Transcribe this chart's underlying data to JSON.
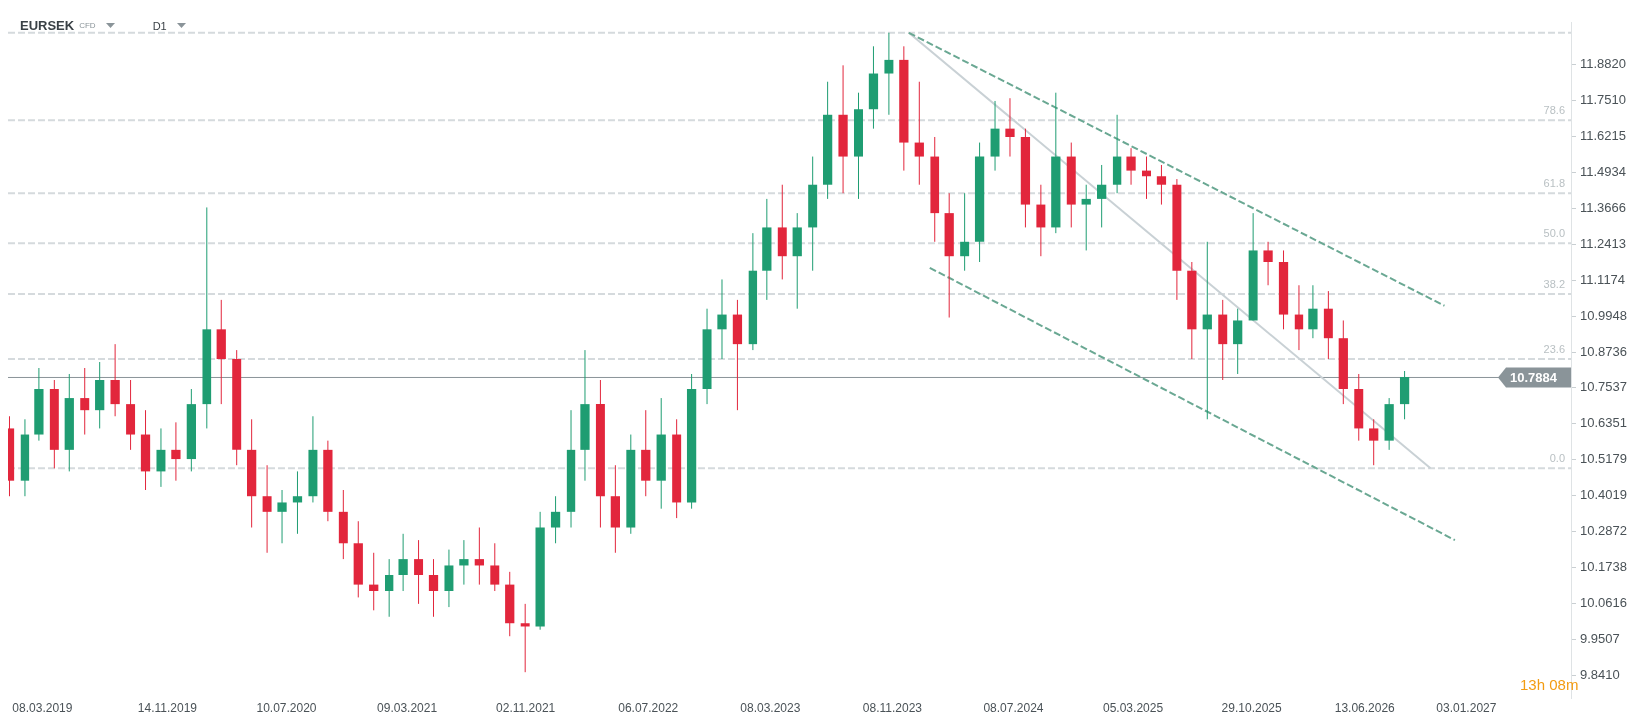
{
  "chart_data": {
    "type": "candlestick",
    "title": "EURSEK",
    "subtitle": "CFD",
    "annotations": [
      "D1",
      "13h 08m",
      {
        "text": "78.6",
        "y": 11.68
      },
      {
        "text": "61.8",
        "y": 11.42
      },
      {
        "text": "50.0",
        "y": 11.245
      },
      {
        "text": "38.2",
        "y": 11.07
      },
      {
        "text": "23.6",
        "y": 10.85
      },
      {
        "text": "0.0",
        "y": 10.49
      }
    ],
    "colors": [
      "#e2263c",
      "#1f9d72",
      "#1f9d72",
      "#e2263c",
      "#1f9d72",
      "#e2263c",
      "#1f9d72",
      "#e2263c",
      "#e2263c",
      "#e2263c",
      "#1f9d72",
      "#e2263c",
      "#1f9d72",
      "#1f9d72",
      "#e2263c",
      "#e2263c",
      "#e2263c",
      "#e2263c",
      "#1f9d72",
      "#1f9d72",
      "#1f9d72",
      "#e2263c",
      "#e2263c",
      "#e2263c",
      "#e2263c",
      "#1f9d72",
      "#1f9d72",
      "#e2263c",
      "#e2263c",
      "#1f9d72",
      "#1f9d72",
      "#e2263c",
      "#e2263c",
      "#e2263c",
      "#e2263c",
      "#1f9d72",
      "#1f9d72",
      "#1f9d72",
      "#1f9d72",
      "#e2263c",
      "#e2263c",
      "#1f9d72",
      "#e2263c",
      "#1f9d72",
      "#e2263c",
      "#1f9d72",
      "#1f9d72",
      "#1f9d72",
      "#e2263c",
      "#1f9d72",
      "#1f9d72",
      "#e2263c",
      "#1f9d72",
      "#1f9d72",
      "#1f9d72",
      "#e2263c",
      "#1f9d72",
      "#1f9d72",
      "#1f9d72",
      "#e2263c",
      "#e2263c",
      "#e2263c",
      "#e2263c",
      "#1f9d72",
      "#1f9d72",
      "#1f9d72",
      "#e2263c",
      "#e2263c",
      "#e2263c",
      "#1f9d72",
      "#e2263c",
      "#1f9d72",
      "#1f9d72",
      "#1f9d72",
      "#e2263c",
      "#e2263c",
      "#e2263c",
      "#e2263c",
      "#e2263c",
      "#1f9d72",
      "#e2263c",
      "#1f9d72",
      "#1f9d72",
      "#e2263c",
      "#e2263c",
      "#e2263c",
      "#1f9d72",
      "#e2263c",
      "#e2263c",
      "#e2263c",
      "#e2263c",
      "#1f9d72",
      "#1f9d72"
    ],
    "x": [
      "2019-01",
      "2019-02",
      "2019-03",
      "2019-04",
      "2019-05",
      "2019-06",
      "2019-07",
      "2019-08",
      "2019-09",
      "2019-10",
      "2019-11",
      "2019-12",
      "2020-01",
      "2020-02",
      "2020-03",
      "2020-04",
      "2020-05",
      "2020-06",
      "2020-07",
      "2020-08",
      "2020-09",
      "2020-10",
      "2020-11",
      "2020-12",
      "2021-01",
      "2021-02",
      "2021-03",
      "2021-04",
      "2021-05",
      "2021-06",
      "2021-07",
      "2021-08",
      "2021-09",
      "2021-10",
      "2021-11",
      "2021-12",
      "2022-01",
      "2022-02",
      "2022-03",
      "2022-04",
      "2022-05",
      "2022-06",
      "2022-07",
      "2022-08",
      "2022-09",
      "2022-10",
      "2022-11",
      "2022-12",
      "2023-01",
      "2023-02",
      "2023-03",
      "2023-04",
      "2023-05",
      "2023-06",
      "2023-07",
      "2023-08",
      "2023-09",
      "2023-10",
      "2023-11",
      "2023-12",
      "2024-01",
      "2024-02",
      "2024-03",
      "2024-04",
      "2024-05",
      "2024-06",
      "2024-07",
      "2024-08",
      "2024-09",
      "2024-10",
      "2024-11",
      "2024-12",
      "2025-01",
      "2025-02",
      "2025-03",
      "2025-04",
      "2025-05",
      "2025-06",
      "2025-07",
      "2025-08",
      "2025-09",
      "2025-10",
      "2025-11",
      "2025-12",
      "2026-01",
      "2026-02",
      "2026-03",
      "2026-04",
      "2026-05",
      "2026-06",
      "2026-07",
      "2026-08",
      "2026-09"
    ],
    "ohlc": [
      [
        10.62,
        10.66,
        10.4,
        10.45
      ],
      [
        10.45,
        10.65,
        10.4,
        10.6
      ],
      [
        10.6,
        10.82,
        10.58,
        10.75
      ],
      [
        10.75,
        10.78,
        10.49,
        10.55
      ],
      [
        10.55,
        10.8,
        10.48,
        10.72
      ],
      [
        10.72,
        10.82,
        10.6,
        10.68
      ],
      [
        10.68,
        10.84,
        10.62,
        10.78
      ],
      [
        10.78,
        10.9,
        10.66,
        10.7
      ],
      [
        10.7,
        10.78,
        10.55,
        10.6
      ],
      [
        10.6,
        10.68,
        10.42,
        10.48
      ],
      [
        10.48,
        10.62,
        10.43,
        10.55
      ],
      [
        10.55,
        10.64,
        10.45,
        10.52
      ],
      [
        10.52,
        10.75,
        10.48,
        10.7
      ],
      [
        10.7,
        11.37,
        10.62,
        10.95
      ],
      [
        10.95,
        11.05,
        10.7,
        10.85
      ],
      [
        10.85,
        10.88,
        10.5,
        10.55
      ],
      [
        10.55,
        10.65,
        10.3,
        10.4
      ],
      [
        10.4,
        10.5,
        10.22,
        10.35
      ],
      [
        10.35,
        10.42,
        10.25,
        10.38
      ],
      [
        10.38,
        10.48,
        10.28,
        10.4
      ],
      [
        10.4,
        10.66,
        10.38,
        10.55
      ],
      [
        10.55,
        10.58,
        10.32,
        10.35
      ],
      [
        10.35,
        10.42,
        10.2,
        10.25
      ],
      [
        10.25,
        10.32,
        10.08,
        10.12
      ],
      [
        10.12,
        10.22,
        10.04,
        10.1
      ],
      [
        10.1,
        10.2,
        10.02,
        10.15
      ],
      [
        10.15,
        10.28,
        10.1,
        10.2
      ],
      [
        10.2,
        10.26,
        10.06,
        10.15
      ],
      [
        10.15,
        10.2,
        10.02,
        10.1
      ],
      [
        10.1,
        10.23,
        10.05,
        10.18
      ],
      [
        10.18,
        10.26,
        10.12,
        10.2
      ],
      [
        10.2,
        10.3,
        10.12,
        10.18
      ],
      [
        10.18,
        10.25,
        10.1,
        10.12
      ],
      [
        10.12,
        10.16,
        9.96,
        10.0
      ],
      [
        10.0,
        10.06,
        9.85,
        9.99
      ],
      [
        9.99,
        10.35,
        9.98,
        10.3
      ],
      [
        10.3,
        10.4,
        10.25,
        10.35
      ],
      [
        10.35,
        10.68,
        10.3,
        10.55
      ],
      [
        10.55,
        10.88,
        10.45,
        10.7
      ],
      [
        10.7,
        10.78,
        10.3,
        10.4
      ],
      [
        10.4,
        10.5,
        10.22,
        10.3
      ],
      [
        10.3,
        10.6,
        10.28,
        10.55
      ],
      [
        10.55,
        10.68,
        10.4,
        10.45
      ],
      [
        10.45,
        10.72,
        10.36,
        10.6
      ],
      [
        10.6,
        10.65,
        10.33,
        10.38
      ],
      [
        10.38,
        10.8,
        10.36,
        10.75
      ],
      [
        10.75,
        11.02,
        10.7,
        10.95
      ],
      [
        10.95,
        11.12,
        10.85,
        11.0
      ],
      [
        11.0,
        11.05,
        10.68,
        10.9
      ],
      [
        10.9,
        11.28,
        10.88,
        11.15
      ],
      [
        11.15,
        11.4,
        11.05,
        11.3
      ],
      [
        11.3,
        11.45,
        11.12,
        11.2
      ],
      [
        11.2,
        11.35,
        11.02,
        11.3
      ],
      [
        11.3,
        11.55,
        11.15,
        11.45
      ],
      [
        11.45,
        11.82,
        11.4,
        11.7
      ],
      [
        11.7,
        11.88,
        11.42,
        11.55
      ],
      [
        11.55,
        11.78,
        11.4,
        11.72
      ],
      [
        11.72,
        11.95,
        11.65,
        11.85
      ],
      [
        11.85,
        12.0,
        11.7,
        11.9
      ],
      [
        11.9,
        11.95,
        11.5,
        11.6
      ],
      [
        11.6,
        11.82,
        11.45,
        11.55
      ],
      [
        11.55,
        11.62,
        11.25,
        11.35
      ],
      [
        11.35,
        11.42,
        10.99,
        11.2
      ],
      [
        11.2,
        11.42,
        11.15,
        11.25
      ],
      [
        11.25,
        11.6,
        11.18,
        11.55
      ],
      [
        11.55,
        11.75,
        11.5,
        11.65
      ],
      [
        11.65,
        11.76,
        11.55,
        11.62
      ],
      [
        11.62,
        11.65,
        11.3,
        11.38
      ],
      [
        11.38,
        11.45,
        11.2,
        11.3
      ],
      [
        11.3,
        11.78,
        11.28,
        11.55
      ],
      [
        11.55,
        11.6,
        11.3,
        11.38
      ],
      [
        11.38,
        11.45,
        11.22,
        11.4
      ],
      [
        11.4,
        11.52,
        11.3,
        11.45
      ],
      [
        11.45,
        11.7,
        11.42,
        11.55
      ],
      [
        11.55,
        11.58,
        11.45,
        11.5
      ],
      [
        11.5,
        11.55,
        11.4,
        11.48
      ],
      [
        11.48,
        11.52,
        11.38,
        11.45
      ],
      [
        11.45,
        11.47,
        11.05,
        11.15
      ],
      [
        11.15,
        11.18,
        10.85,
        10.95
      ],
      [
        10.95,
        11.25,
        10.65,
        11.0
      ],
      [
        11.0,
        11.05,
        10.78,
        10.9
      ],
      [
        10.9,
        11.02,
        10.8,
        10.98
      ],
      [
        10.98,
        11.35,
        10.98,
        11.22
      ],
      [
        11.22,
        11.25,
        11.1,
        11.18
      ],
      [
        11.18,
        11.22,
        10.95,
        11.0
      ],
      [
        11.0,
        11.1,
        10.88,
        10.95
      ],
      [
        10.95,
        11.1,
        10.92,
        11.02
      ],
      [
        11.02,
        11.08,
        10.85,
        10.92
      ],
      [
        10.92,
        10.98,
        10.7,
        10.75
      ],
      [
        10.75,
        10.8,
        10.58,
        10.62
      ],
      [
        10.62,
        10.65,
        10.5,
        10.58
      ],
      [
        10.58,
        10.72,
        10.55,
        10.7
      ],
      [
        10.7,
        10.81,
        10.65,
        10.79
      ]
    ],
    "series": [
      {
        "type": "line",
        "color": "#6aa893",
        "line_style": "dashed",
        "x": [
          "2023-12-11",
          "2026-11-20"
        ],
        "values": [
          12.0,
          11.03
        ]
      },
      {
        "type": "line",
        "color": "#6aa893",
        "line_style": "dashed",
        "x": [
          "2024-01-22",
          "2026-12-11"
        ],
        "values": [
          11.16,
          10.26
        ]
      },
      {
        "type": "line",
        "color": "#c9d1d5",
        "line_style": "solid",
        "x": [
          "2023-12-11",
          "2026-10-23"
        ],
        "values": [
          12.0,
          10.49
        ]
      }
    ],
    "ref_lines": [
      {
        "axis": "y",
        "value": 12.0,
        "color": "#d5dadd",
        "line_style": "dashed"
      },
      {
        "axis": "y",
        "value": 11.68,
        "color": "#d5dadd",
        "line_style": "dashed"
      },
      {
        "axis": "y",
        "value": 11.42,
        "color": "#d5dadd",
        "line_style": "dashed"
      },
      {
        "axis": "y",
        "value": 11.245,
        "color": "#d5dadd",
        "line_style": "dashed"
      },
      {
        "axis": "y",
        "value": 11.07,
        "color": "#d5dadd",
        "line_style": "dashed"
      },
      {
        "axis": "y",
        "value": 10.85,
        "color": "#d5dadd",
        "line_style": "dashed"
      },
      {
        "axis": "y",
        "value": 10.49,
        "color": "#d5dadd",
        "line_style": "dashed"
      },
      {
        "axis": "y",
        "value": 10.7884,
        "label": "10.7884",
        "color": "#8a9499",
        "line_style": "solid"
      }
    ],
    "log": "y",
    "grid": false,
    "legend": false,
    "marker": "none",
    "xlim": [
      "2018-12-29",
      "2027-08-01"
    ],
    "xticks": [
      {
        "value": "2019-03-08",
        "label": "08.03.2019"
      },
      {
        "value": "2019-11-14",
        "label": "14.11.2019"
      },
      {
        "value": "2020-07-10",
        "label": "10.07.2020"
      },
      {
        "value": "2021-03-09",
        "label": "09.03.2021"
      },
      {
        "value": "2021-11-02",
        "label": "02.11.2021"
      },
      {
        "value": "2022-07-06",
        "label": "06.07.2022"
      },
      {
        "value": "2023-03-08",
        "label": "08.03.2023"
      },
      {
        "value": "2023-11-08",
        "label": "08.11.2023"
      },
      {
        "value": "2024-07-08",
        "label": "08.07.2024"
      },
      {
        "value": "2025-03-05",
        "label": "05.03.2025"
      },
      {
        "value": "2025-10-29",
        "label": "29.10.2025"
      },
      {
        "value": "2026-06-13",
        "label": "13.06.2026"
      },
      {
        "value": "2027-01-03",
        "label": "03.01.2027"
      }
    ],
    "ylim": [
      9.77,
      12.04
    ],
    "yticks": [
      {
        "value": 9.841,
        "label": "9.8410"
      },
      {
        "value": 9.9507,
        "label": "9.9507"
      },
      {
        "value": 10.0616,
        "label": "10.0616"
      },
      {
        "value": 10.1738,
        "label": "10.1738"
      },
      {
        "value": 10.2872,
        "label": "10.2872"
      },
      {
        "value": 10.4019,
        "label": "10.4019"
      },
      {
        "value": 10.5179,
        "label": "10.5179"
      },
      {
        "value": 10.6351,
        "label": "10.6351"
      },
      {
        "value": 10.7537,
        "label": "10.7537"
      },
      {
        "value": 10.8736,
        "label": "10.8736"
      },
      {
        "value": 10.9948,
        "label": "10.9948"
      },
      {
        "value": 11.1174,
        "label": "11.1174"
      },
      {
        "value": 11.2413,
        "label": "11.2413"
      },
      {
        "value": 11.3666,
        "label": "11.3666"
      },
      {
        "value": 11.4934,
        "label": "11.4934"
      },
      {
        "value": 11.6215,
        "label": "11.6215"
      },
      {
        "value": 11.751,
        "label": "11.7510"
      },
      {
        "value": 11.882,
        "label": "11.8820"
      }
    ]
  }
}
